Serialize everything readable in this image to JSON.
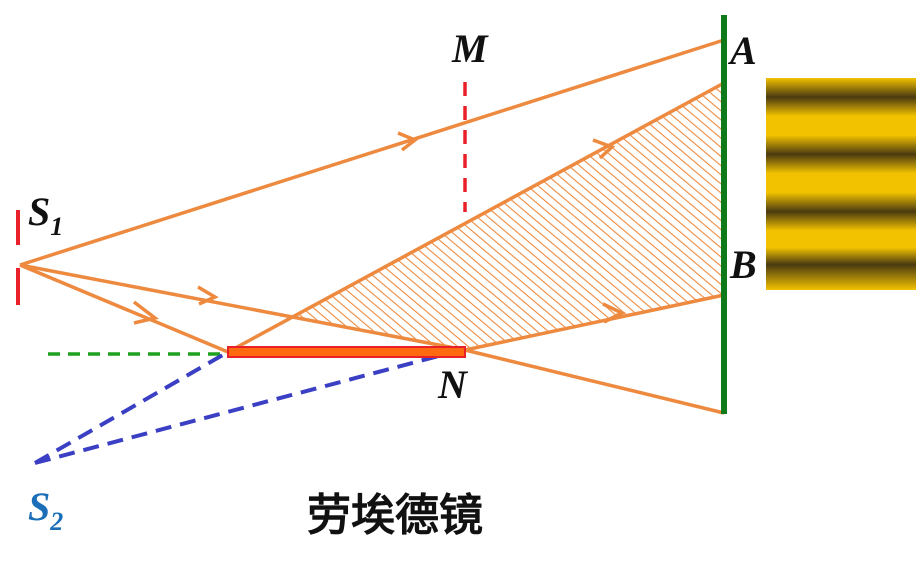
{
  "labels": {
    "S1": {
      "letter": "S",
      "subscript": "1"
    },
    "S2": {
      "letter": "S",
      "subscript": "2"
    },
    "M": "M",
    "N": "N",
    "A": "A",
    "B": "B"
  },
  "caption": "劳埃德镜"
}
